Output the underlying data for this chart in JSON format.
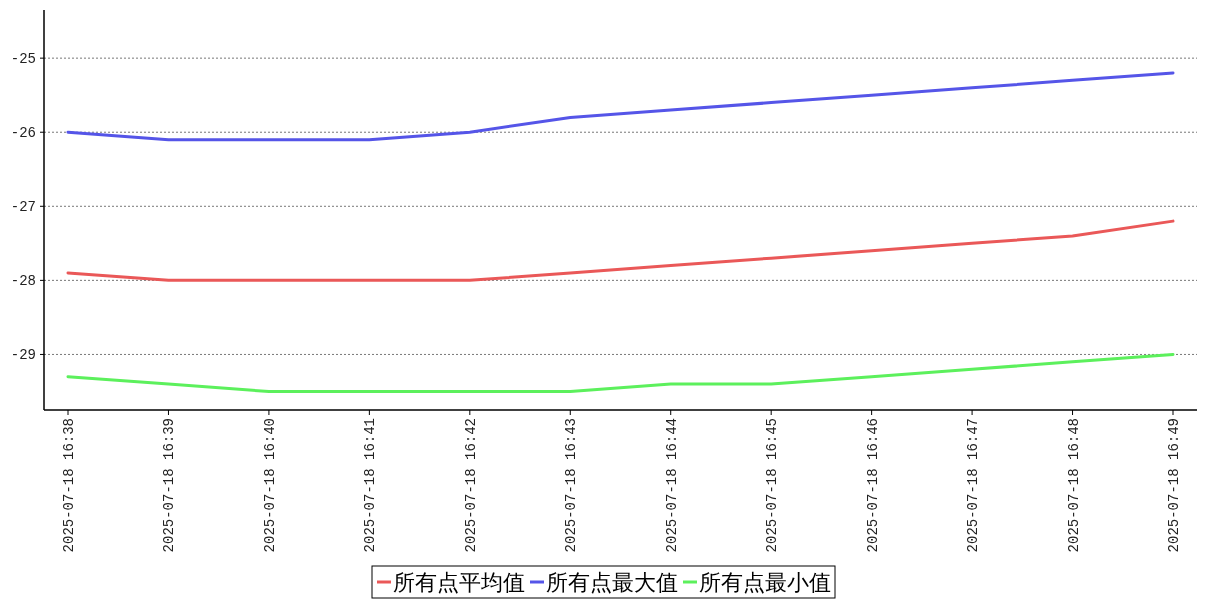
{
  "chart_data": {
    "type": "line",
    "categories": [
      "2025-07-18 16:38",
      "2025-07-18 16:39",
      "2025-07-18 16:40",
      "2025-07-18 16:41",
      "2025-07-18 16:42",
      "2025-07-18 16:43",
      "2025-07-18 16:44",
      "2025-07-18 16:45",
      "2025-07-18 16:46",
      "2025-07-18 16:47",
      "2025-07-18 16:48",
      "2025-07-18 16:49"
    ],
    "series": [
      {
        "name": "所有点平均值",
        "color": "#ea5858",
        "values": [
          -27.9,
          -28,
          -28,
          -28,
          -28,
          -27.9,
          -27.8,
          -27.7,
          -27.6,
          -27.5,
          -27.4,
          -27.2
        ]
      },
      {
        "name": "所有点最大值",
        "color": "#5555e8",
        "values": [
          -26,
          -26.1,
          -26.1,
          -26.1,
          -26,
          -25.8,
          -25.7,
          -25.6,
          -25.5,
          -25.4,
          -25.3,
          -25.2
        ]
      },
      {
        "name": "所有点最小值",
        "color": "#5cf05c",
        "values": [
          -29.3,
          -29.4,
          -29.5,
          -29.5,
          -29.5,
          -29.5,
          -29.4,
          -29.4,
          -29.3,
          -29.2,
          -29.1,
          -29.0
        ]
      }
    ],
    "ylim": [
      -29.75,
      -24.35
    ],
    "yticks": [
      -29,
      -28,
      -27,
      -26,
      -25
    ],
    "grid": "y",
    "legend": "bottom"
  }
}
